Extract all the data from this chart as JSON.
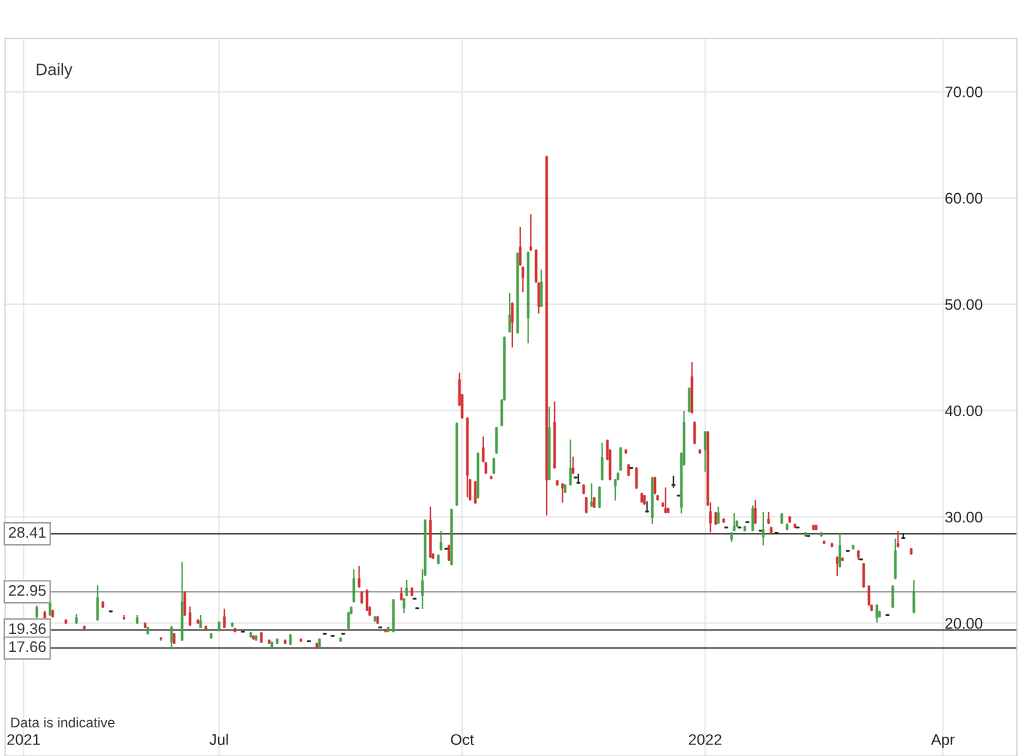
{
  "chart_data": {
    "type": "candlestick",
    "annotations": [
      "Daily",
      "Data is indicative"
    ],
    "xlim": [
      "2021-04-11",
      "2022-04-29"
    ],
    "xticks": [
      {
        "value": "2021-04-18",
        "label": "2021"
      },
      {
        "value": "2021-07-01",
        "label": "Jul"
      },
      {
        "value": "2021-10-01",
        "label": "Oct"
      },
      {
        "value": "2022-01-01",
        "label": "2022"
      },
      {
        "value": "2022-04-01",
        "label": "Apr"
      }
    ],
    "ylim": [
      7.5,
      75
    ],
    "yticks": [
      {
        "value": 20,
        "label": "20.00"
      },
      {
        "value": 30,
        "label": "30.00"
      },
      {
        "value": 40,
        "label": "40.00"
      },
      {
        "value": 50,
        "label": "50.00"
      },
      {
        "value": 60,
        "label": "60.00"
      },
      {
        "value": 70,
        "label": "70.00"
      }
    ],
    "grid": true,
    "ref_lines": [
      {
        "axis": "y",
        "value": 28.41,
        "label": "28.41",
        "color": "#444444"
      },
      {
        "axis": "y",
        "value": 22.95,
        "label": "22.95",
        "color": "#9e9e9e"
      },
      {
        "axis": "y",
        "value": 19.36,
        "label": "19.36",
        "color": "#444444"
      },
      {
        "axis": "y",
        "value": 17.66,
        "label": "17.66",
        "color": "#444444"
      }
    ],
    "x": [
      "2021-04-23",
      "2021-04-26",
      "2021-04-28",
      "2021-04-29",
      "2021-05-04",
      "2021-05-08",
      "2021-05-11",
      "2021-05-16",
      "2021-05-18",
      "2021-05-21",
      "2021-05-26",
      "2021-05-31",
      "2021-06-03",
      "2021-06-04",
      "2021-06-09",
      "2021-06-13",
      "2021-06-14",
      "2021-06-17",
      "2021-06-18",
      "2021-06-20",
      "2021-06-23",
      "2021-06-24",
      "2021-06-26",
      "2021-06-28",
      "2021-07-01",
      "2021-07-03",
      "2021-07-06",
      "2021-07-07",
      "2021-07-10",
      "2021-07-13",
      "2021-07-14",
      "2021-07-15",
      "2021-07-17",
      "2021-07-20",
      "2021-07-21",
      "2021-07-23",
      "2021-07-26",
      "2021-07-28",
      "2021-08-01",
      "2021-08-04",
      "2021-08-07",
      "2021-08-08",
      "2021-08-10",
      "2021-08-13",
      "2021-08-16",
      "2021-08-17",
      "2021-08-19",
      "2021-08-20",
      "2021-08-21",
      "2021-08-23",
      "2021-08-24",
      "2021-08-26",
      "2021-08-27",
      "2021-08-29",
      "2021-08-30",
      "2021-08-31",
      "2021-09-02",
      "2021-09-03",
      "2021-09-05",
      "2021-09-08",
      "2021-09-09",
      "2021-09-10",
      "2021-09-12",
      "2021-09-13",
      "2021-09-14",
      "2021-09-16",
      "2021-09-17",
      "2021-09-19",
      "2021-09-20",
      "2021-09-22",
      "2021-09-23",
      "2021-09-25",
      "2021-09-26",
      "2021-09-27",
      "2021-09-29",
      "2021-09-30",
      "2021-10-01",
      "2021-10-03",
      "2021-10-04",
      "2021-10-06",
      "2021-10-07",
      "2021-10-09",
      "2021-10-10",
      "2021-10-12",
      "2021-10-13",
      "2021-10-14",
      "2021-10-16",
      "2021-10-17",
      "2021-10-19",
      "2021-10-20",
      "2021-10-22",
      "2021-10-23",
      "2021-10-24",
      "2021-10-26",
      "2021-10-27",
      "2021-10-29",
      "2021-10-30",
      "2021-10-31",
      "2021-11-02",
      "2021-11-03",
      "2021-11-05",
      "2021-11-06",
      "2021-11-08",
      "2021-11-09",
      "2021-11-11",
      "2021-11-12",
      "2021-11-13",
      "2021-11-14",
      "2021-11-16",
      "2021-11-17",
      "2021-11-19",
      "2021-11-20",
      "2021-11-22",
      "2021-11-23",
      "2021-11-25",
      "2021-11-26",
      "2021-11-28",
      "2021-11-29",
      "2021-11-30",
      "2021-12-02",
      "2021-12-03",
      "2021-12-04",
      "2021-12-06",
      "2021-12-08",
      "2021-12-09",
      "2021-12-10",
      "2021-12-12",
      "2021-12-13",
      "2021-12-14",
      "2021-12-16",
      "2021-12-17",
      "2021-12-18",
      "2021-12-20",
      "2021-12-22",
      "2021-12-23",
      "2021-12-24",
      "2021-12-26",
      "2021-12-27",
      "2021-12-28",
      "2021-12-30",
      "2022-01-01",
      "2022-01-02",
      "2022-01-03",
      "2022-01-05",
      "2022-01-06",
      "2022-01-08",
      "2022-01-09",
      "2022-01-11",
      "2022-01-12",
      "2022-01-13",
      "2022-01-14",
      "2022-01-16",
      "2022-01-17",
      "2022-01-19",
      "2022-01-20",
      "2022-01-22",
      "2022-01-23",
      "2022-01-25",
      "2022-01-26",
      "2022-01-28",
      "2022-01-30",
      "2022-02-01",
      "2022-02-02",
      "2022-02-04",
      "2022-02-05",
      "2022-02-08",
      "2022-02-09",
      "2022-02-11",
      "2022-02-12",
      "2022-02-14",
      "2022-02-15",
      "2022-02-18",
      "2022-02-20",
      "2022-02-21",
      "2022-02-22",
      "2022-02-24",
      "2022-02-26",
      "2022-02-28",
      "2022-03-01",
      "2022-03-02",
      "2022-03-04",
      "2022-03-05",
      "2022-03-07",
      "2022-03-08",
      "2022-03-11",
      "2022-03-13",
      "2022-03-14",
      "2022-03-15",
      "2022-03-17",
      "2022-03-20",
      "2022-03-21"
    ],
    "ohlc": [
      [
        20.6,
        21.6,
        20.5,
        21.5
      ],
      [
        21.0,
        21.1,
        20.5,
        20.5
      ],
      [
        20.75,
        22.2,
        20.75,
        22.0
      ],
      [
        21.2,
        21.2,
        20.6,
        20.6
      ],
      [
        20.3,
        20.3,
        20.0,
        20.0
      ],
      [
        20.0,
        20.8,
        20.0,
        20.5
      ],
      [
        19.7,
        19.7,
        19.4,
        19.4
      ],
      [
        20.3,
        23.5,
        20.3,
        22.4
      ],
      [
        22.0,
        22.0,
        21.5,
        21.5
      ],
      [
        21.1,
        21.1,
        21.1,
        21.1
      ],
      [
        20.5,
        20.7,
        20.4,
        20.4
      ],
      [
        20.0,
        20.7,
        20.0,
        20.5
      ],
      [
        20.0,
        20.0,
        19.6,
        19.6
      ],
      [
        19.0,
        19.6,
        19.0,
        19.6
      ],
      [
        18.6,
        18.6,
        18.4,
        18.5
      ],
      [
        18.2,
        19.7,
        17.6,
        19.6
      ],
      [
        19.0,
        19.0,
        18.1,
        18.1
      ],
      [
        18.4,
        25.7,
        18.4,
        22.0
      ],
      [
        22.9,
        22.9,
        20.75,
        20.75
      ],
      [
        21.0,
        21.5,
        19.8,
        19.8
      ],
      [
        20.3,
        20.3,
        20.0,
        20.0
      ],
      [
        19.6,
        20.7,
        19.6,
        20.2
      ],
      [
        19.7,
        19.7,
        19.4,
        19.4
      ],
      [
        18.6,
        19.0,
        18.6,
        19.0
      ],
      [
        19.3,
        20.1,
        19.3,
        20.1
      ],
      [
        20.6,
        21.3,
        19.6,
        19.6
      ],
      [
        19.7,
        20.0,
        19.7,
        20.0
      ],
      [
        19.5,
        19.5,
        19.2,
        19.2
      ],
      [
        19.2,
        19.2,
        19.2,
        19.2
      ],
      [
        18.7,
        19.1,
        18.7,
        19.1
      ],
      [
        18.8,
        18.8,
        18.5,
        18.5
      ],
      [
        18.4,
        18.8,
        18.4,
        18.8
      ],
      [
        19.1,
        19.1,
        18.2,
        18.2
      ],
      [
        18.4,
        18.4,
        18.1,
        18.1
      ],
      [
        17.7,
        18.2,
        17.7,
        18.2
      ],
      [
        18.1,
        18.5,
        18.1,
        18.5
      ],
      [
        18.4,
        18.4,
        18.1,
        18.1
      ],
      [
        18.0,
        18.9,
        18.0,
        18.9
      ],
      [
        18.5,
        18.5,
        18.3,
        18.3
      ],
      [
        18.3,
        18.3,
        18.3,
        18.3
      ],
      [
        18.1,
        18.1,
        17.7,
        17.7
      ],
      [
        17.7,
        18.5,
        17.7,
        18.5
      ],
      [
        19.0,
        19.0,
        19.0,
        19.0
      ],
      [
        18.8,
        18.8,
        18.8,
        18.8
      ],
      [
        18.3,
        18.6,
        18.3,
        18.6
      ],
      [
        19.0,
        19.0,
        19.0,
        19.0
      ],
      [
        19.5,
        21.0,
        19.5,
        21.0
      ],
      [
        20.9,
        21.5,
        20.9,
        21.5
      ],
      [
        22.0,
        25.0,
        22.0,
        24.2
      ],
      [
        24.2,
        25.3,
        23.4,
        23.4
      ],
      [
        22.9,
        22.9,
        21.9,
        21.9
      ],
      [
        23.1,
        23.1,
        21.2,
        21.2
      ],
      [
        21.5,
        21.5,
        20.75,
        20.75
      ],
      [
        20.2,
        20.6,
        20.2,
        20.6
      ],
      [
        20.6,
        20.6,
        20.0,
        20.0
      ],
      [
        19.6,
        19.6,
        19.6,
        19.6
      ],
      [
        19.4,
        19.4,
        19.2,
        19.2
      ],
      [
        19.2,
        19.6,
        19.2,
        19.6
      ],
      [
        19.2,
        22.2,
        19.2,
        22.2
      ],
      [
        22.8,
        23.3,
        22.2,
        22.2
      ],
      [
        21.4,
        22.3,
        21.0,
        22.3
      ],
      [
        22.6,
        24.0,
        22.6,
        23.3
      ],
      [
        23.3,
        23.3,
        22.6,
        22.6
      ],
      [
        22.3,
        22.3,
        22.3,
        22.3
      ],
      [
        21.4,
        21.4,
        21.4,
        21.4
      ],
      [
        22.6,
        25.0,
        21.4,
        24.0
      ],
      [
        24.5,
        29.7,
        24.5,
        29.7
      ],
      [
        29.7,
        30.9,
        26.2,
        26.2
      ],
      [
        26.5,
        26.5,
        26.1,
        26.1
      ],
      [
        25.6,
        26.4,
        25.6,
        26.4
      ],
      [
        26.9,
        28.6,
        26.9,
        27.6
      ],
      [
        27.0,
        27.0,
        27.0,
        27.0
      ],
      [
        27.3,
        27.3,
        25.9,
        25.9
      ],
      [
        25.5,
        30.7,
        25.5,
        30.7
      ],
      [
        31.1,
        38.8,
        31.1,
        38.8
      ],
      [
        42.9,
        43.5,
        40.5,
        40.5
      ],
      [
        41.5,
        41.5,
        39.3,
        39.3
      ],
      [
        39.3,
        39.3,
        31.9,
        33.9
      ],
      [
        33.5,
        33.5,
        31.6,
        31.6
      ],
      [
        33.3,
        33.3,
        31.3,
        31.3
      ],
      [
        31.8,
        36.0,
        31.8,
        36.0
      ],
      [
        36.5,
        37.5,
        35.2,
        35.2
      ],
      [
        35.1,
        35.1,
        34.1,
        34.1
      ],
      [
        33.8,
        33.8,
        33.6,
        33.6
      ],
      [
        34.1,
        35.5,
        34.1,
        35.5
      ],
      [
        36.0,
        38.4,
        36.0,
        38.4
      ],
      [
        38.6,
        41.0,
        38.6,
        41.0
      ],
      [
        41.0,
        46.9,
        41.0,
        46.9
      ],
      [
        47.4,
        51.0,
        47.4,
        49.0
      ],
      [
        50.1,
        50.1,
        46.0,
        48.3
      ],
      [
        47.3,
        54.8,
        47.3,
        54.8
      ],
      [
        55.4,
        57.2,
        53.7,
        53.7
      ],
      [
        53.5,
        53.5,
        51.2,
        52.5
      ],
      [
        48.7,
        54.9,
        46.4,
        54.9
      ],
      [
        55.4,
        58.4,
        55.1,
        55.1
      ],
      [
        55.1,
        55.1,
        52.1,
        52.1
      ],
      [
        52.0,
        52.0,
        49.2,
        49.8
      ],
      [
        49.8,
        53.2,
        49.8,
        52.1
      ],
      [
        63.9,
        63.9,
        30.2,
        33.5
      ],
      [
        33.5,
        40.3,
        33.5,
        38.4
      ],
      [
        38.9,
        40.8,
        34.6,
        34.6
      ],
      [
        33.4,
        33.4,
        33.0,
        33.0
      ],
      [
        33.1,
        33.1,
        31.4,
        32.7
      ],
      [
        32.3,
        33.0,
        32.3,
        33.0
      ],
      [
        33.0,
        37.2,
        33.0,
        34.6
      ],
      [
        34.6,
        35.6,
        34.1,
        34.1
      ],
      [
        33.7,
        33.7,
        33.7,
        33.7
      ],
      [
        33.2,
        34.0,
        33.2,
        33.2
      ],
      [
        33.0,
        33.0,
        32.2,
        32.2
      ],
      [
        31.8,
        31.8,
        30.4,
        30.4
      ],
      [
        31.0,
        33.1,
        31.0,
        31.4
      ],
      [
        31.8,
        31.8,
        30.9,
        30.9
      ],
      [
        30.9,
        32.8,
        30.9,
        32.8
      ],
      [
        33.5,
        36.9,
        33.5,
        35.6
      ],
      [
        37.2,
        37.2,
        35.4,
        35.4
      ],
      [
        36.3,
        36.3,
        33.5,
        33.5
      ],
      [
        32.9,
        33.5,
        31.6,
        33.5
      ],
      [
        33.5,
        34.1,
        33.5,
        34.1
      ],
      [
        34.4,
        36.5,
        34.4,
        36.5
      ],
      [
        36.3,
        36.3,
        36.0,
        36.0
      ],
      [
        34.9,
        34.9,
        33.9,
        33.9
      ],
      [
        34.6,
        34.6,
        34.6,
        34.6
      ],
      [
        34.6,
        34.6,
        32.7,
        32.7
      ],
      [
        32.2,
        32.2,
        31.4,
        31.4
      ],
      [
        32.0,
        32.0,
        31.2,
        31.2
      ],
      [
        30.5,
        31.4,
        30.5,
        30.5
      ],
      [
        29.9,
        33.7,
        29.4,
        33.7
      ],
      [
        33.7,
        33.7,
        32.2,
        32.2
      ],
      [
        32.0,
        32.0,
        31.6,
        31.6
      ],
      [
        31.3,
        31.3,
        31.0,
        31.0
      ],
      [
        30.8,
        32.7,
        30.4,
        30.4
      ],
      [
        30.8,
        30.8,
        30.4,
        30.4
      ],
      [
        33.0,
        33.8,
        32.8,
        33.0
      ],
      [
        32.0,
        32.0,
        32.0,
        32.0
      ],
      [
        30.9,
        36.0,
        30.4,
        36.0
      ],
      [
        34.9,
        39.9,
        34.9,
        38.9
      ],
      [
        39.9,
        42.1,
        39.9,
        42.1
      ],
      [
        43.2,
        44.5,
        39.8,
        39.8
      ],
      [
        38.9,
        38.9,
        36.9,
        36.9
      ],
      [
        36.3,
        36.3,
        36.0,
        36.0
      ],
      [
        36.3,
        38.0,
        34.3,
        38.0
      ],
      [
        38.0,
        38.0,
        31.1,
        31.1
      ],
      [
        30.5,
        31.3,
        28.6,
        29.4
      ],
      [
        30.4,
        30.4,
        29.3,
        29.3
      ],
      [
        29.4,
        30.9,
        29.4,
        30.4
      ],
      [
        29.8,
        29.8,
        29.5,
        29.5
      ],
      [
        29.0,
        29.0,
        29.0,
        29.0
      ],
      [
        27.9,
        28.5,
        27.7,
        28.5
      ],
      [
        28.7,
        30.3,
        28.7,
        29.1
      ],
      [
        29.1,
        29.6,
        29.1,
        29.6
      ],
      [
        29.0,
        29.0,
        29.0,
        29.0
      ],
      [
        28.7,
        29.1,
        28.7,
        29.1
      ],
      [
        29.5,
        29.5,
        29.5,
        29.5
      ],
      [
        28.7,
        31.0,
        28.7,
        30.8
      ],
      [
        30.8,
        31.5,
        29.4,
        29.4
      ],
      [
        28.7,
        28.7,
        28.7,
        28.7
      ],
      [
        28.1,
        30.4,
        27.4,
        28.8
      ],
      [
        29.8,
        30.4,
        29.4,
        29.4
      ],
      [
        29.0,
        29.0,
        28.5,
        28.5
      ],
      [
        28.5,
        28.5,
        28.5,
        28.5
      ],
      [
        29.4,
        30.3,
        29.4,
        30.3
      ],
      [
        28.8,
        29.3,
        28.8,
        29.3
      ],
      [
        30.0,
        30.0,
        29.5,
        29.5
      ],
      [
        29.3,
        29.3,
        29.0,
        29.0
      ],
      [
        29.0,
        29.0,
        29.0,
        29.0
      ],
      [
        28.2,
        28.5,
        28.2,
        28.5
      ],
      [
        28.2,
        28.2,
        28.2,
        28.2
      ],
      [
        29.2,
        29.2,
        28.8,
        28.8
      ],
      [
        29.2,
        29.2,
        28.8,
        28.8
      ],
      [
        28.2,
        28.5,
        28.2,
        28.5
      ],
      [
        27.7,
        27.7,
        27.5,
        27.5
      ],
      [
        27.5,
        27.5,
        27.2,
        27.2
      ],
      [
        26.2,
        26.2,
        24.5,
        25.6
      ],
      [
        25.3,
        28.4,
        25.3,
        27.3
      ],
      [
        26.1,
        26.1,
        25.9,
        25.9
      ],
      [
        26.8,
        26.8,
        26.8,
        26.8
      ],
      [
        27.0,
        27.3,
        27.0,
        27.3
      ],
      [
        26.8,
        26.8,
        26.0,
        26.2
      ],
      [
        26.0,
        26.0,
        26.0,
        26.0
      ],
      [
        25.6,
        25.6,
        23.4,
        23.4
      ],
      [
        23.5,
        23.5,
        21.7,
        21.7
      ],
      [
        21.7,
        21.7,
        21.2,
        21.2
      ],
      [
        20.5,
        21.7,
        20.1,
        21.7
      ],
      [
        20.6,
        21.1,
        20.6,
        21.1
      ],
      [
        20.75,
        20.75,
        20.75,
        20.75
      ],
      [
        21.5,
        23.5,
        21.5,
        23.5
      ],
      [
        24.2,
        27.9,
        24.2,
        26.8
      ],
      [
        27.5,
        28.6,
        27.2,
        27.2
      ],
      [
        28.0,
        28.4,
        28.0,
        28.0
      ],
      [
        27.0,
        27.0,
        26.5,
        26.5
      ],
      [
        21.0,
        24.0,
        21.0,
        22.95
      ]
    ],
    "colors": [
      "#43a047",
      "#d32f2f",
      "#43a047",
      "#d32f2f",
      "#d32f2f",
      "#43a047",
      "#d32f2f",
      "#43a047",
      "#d32f2f",
      "#222222",
      "#d32f2f",
      "#43a047",
      "#d32f2f",
      "#43a047",
      "#d32f2f",
      "#43a047",
      "#d32f2f",
      "#43a047",
      "#d32f2f",
      "#d32f2f",
      "#d32f2f",
      "#43a047",
      "#d32f2f",
      "#43a047",
      "#43a047",
      "#d32f2f",
      "#43a047",
      "#d32f2f",
      "#222222",
      "#43a047",
      "#d32f2f",
      "#43a047",
      "#d32f2f",
      "#d32f2f",
      "#43a047",
      "#43a047",
      "#d32f2f",
      "#43a047",
      "#d32f2f",
      "#222222",
      "#d32f2f",
      "#43a047",
      "#222222",
      "#222222",
      "#43a047",
      "#222222",
      "#43a047",
      "#43a047",
      "#43a047",
      "#d32f2f",
      "#d32f2f",
      "#d32f2f",
      "#d32f2f",
      "#43a047",
      "#d32f2f",
      "#222222",
      "#d32f2f",
      "#43a047",
      "#43a047",
      "#d32f2f",
      "#43a047",
      "#43a047",
      "#d32f2f",
      "#222222",
      "#222222",
      "#43a047",
      "#43a047",
      "#d32f2f",
      "#d32f2f",
      "#43a047",
      "#43a047",
      "#222222",
      "#d32f2f",
      "#43a047",
      "#43a047",
      "#d32f2f",
      "#d32f2f",
      "#d32f2f",
      "#d32f2f",
      "#d32f2f",
      "#43a047",
      "#d32f2f",
      "#d32f2f",
      "#d32f2f",
      "#43a047",
      "#43a047",
      "#43a047",
      "#43a047",
      "#43a047",
      "#d32f2f",
      "#43a047",
      "#d32f2f",
      "#d32f2f",
      "#43a047",
      "#d32f2f",
      "#d32f2f",
      "#d32f2f",
      "#43a047",
      "#d32f2f",
      "#43a047",
      "#d32f2f",
      "#d32f2f",
      "#d32f2f",
      "#43a047",
      "#43a047",
      "#d32f2f",
      "#222222",
      "#222222",
      "#d32f2f",
      "#d32f2f",
      "#43a047",
      "#d32f2f",
      "#43a047",
      "#43a047",
      "#d32f2f",
      "#d32f2f",
      "#43a047",
      "#43a047",
      "#43a047",
      "#d32f2f",
      "#d32f2f",
      "#222222",
      "#d32f2f",
      "#d32f2f",
      "#d32f2f",
      "#222222",
      "#43a047",
      "#d32f2f",
      "#d32f2f",
      "#d32f2f",
      "#d32f2f",
      "#d32f2f",
      "#222222",
      "#222222",
      "#43a047",
      "#43a047",
      "#43a047",
      "#d32f2f",
      "#d32f2f",
      "#d32f2f",
      "#43a047",
      "#d32f2f",
      "#d32f2f",
      "#d32f2f",
      "#43a047",
      "#d32f2f",
      "#222222",
      "#43a047",
      "#43a047",
      "#43a047",
      "#222222",
      "#43a047",
      "#222222",
      "#43a047",
      "#d32f2f",
      "#222222",
      "#43a047",
      "#d32f2f",
      "#d32f2f",
      "#222222",
      "#43a047",
      "#43a047",
      "#d32f2f",
      "#d32f2f",
      "#222222",
      "#43a047",
      "#222222",
      "#d32f2f",
      "#d32f2f",
      "#43a047",
      "#d32f2f",
      "#d32f2f",
      "#d32f2f",
      "#43a047",
      "#d32f2f",
      "#222222",
      "#43a047",
      "#d32f2f",
      "#222222",
      "#d32f2f",
      "#d32f2f",
      "#d32f2f",
      "#43a047",
      "#43a047",
      "#222222",
      "#43a047",
      "#43a047",
      "#d32f2f",
      "#222222",
      "#d32f2f",
      "#43a047"
    ]
  }
}
